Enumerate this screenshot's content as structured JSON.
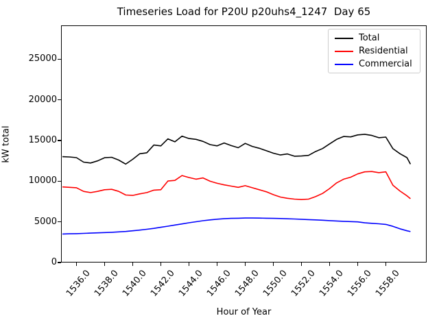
{
  "chart_data": {
    "type": "line",
    "title": "Timeseries Load for P20U p20uhs4_1247  Day 65",
    "xlabel": "Hour of Year",
    "ylabel": "kW total",
    "grid": false,
    "legend_position": "upper right",
    "xlim": [
      1534.9,
      1560.9
    ],
    "ylim": [
      0,
      29170
    ],
    "x_ticks": [
      {
        "value": 1536,
        "label": "1536.0"
      },
      {
        "value": 1538,
        "label": "1538.0"
      },
      {
        "value": 1540,
        "label": "1540.0"
      },
      {
        "value": 1542,
        "label": "1542.0"
      },
      {
        "value": 1544,
        "label": "1544.0"
      },
      {
        "value": 1546,
        "label": "1546.0"
      },
      {
        "value": 1548,
        "label": "1548.0"
      },
      {
        "value": 1550,
        "label": "1550.0"
      },
      {
        "value": 1552,
        "label": "1552.0"
      },
      {
        "value": 1554,
        "label": "1554.0"
      },
      {
        "value": 1556,
        "label": "1556.0"
      },
      {
        "value": 1558,
        "label": "1558.0"
      }
    ],
    "y_ticks": [
      {
        "value": 0,
        "label": "0"
      },
      {
        "value": 5000,
        "label": "5000"
      },
      {
        "value": 10000,
        "label": "10000"
      },
      {
        "value": 15000,
        "label": "15000"
      },
      {
        "value": 20000,
        "label": "20000"
      },
      {
        "value": 25000,
        "label": "25000"
      }
    ],
    "x": [
      1535.0,
      1535.5,
      1536.0,
      1536.5,
      1537.0,
      1537.5,
      1538.0,
      1538.5,
      1539.0,
      1539.5,
      1540.0,
      1540.5,
      1541.0,
      1541.5,
      1542.0,
      1542.5,
      1543.0,
      1543.5,
      1544.0,
      1544.5,
      1545.0,
      1545.5,
      1546.0,
      1546.5,
      1547.0,
      1547.5,
      1548.0,
      1548.5,
      1549.0,
      1549.5,
      1550.0,
      1550.5,
      1551.0,
      1551.5,
      1552.0,
      1552.5,
      1553.0,
      1553.5,
      1554.0,
      1554.5,
      1555.0,
      1555.5,
      1556.0,
      1556.5,
      1557.0,
      1557.5,
      1558.0,
      1558.5,
      1559.0,
      1559.5,
      1559.75
    ],
    "series": [
      {
        "name": "Total",
        "color": "#000000",
        "values": [
          13020,
          12980,
          12900,
          12350,
          12240,
          12500,
          12890,
          12940,
          12600,
          12110,
          12700,
          13380,
          13500,
          14450,
          14350,
          15210,
          14850,
          15550,
          15250,
          15150,
          14900,
          14500,
          14350,
          14700,
          14380,
          14120,
          14650,
          14280,
          14050,
          13750,
          13450,
          13230,
          13350,
          13080,
          13100,
          13180,
          13650,
          14020,
          14590,
          15150,
          15500,
          15450,
          15700,
          15770,
          15630,
          15350,
          15430,
          14000,
          13390,
          12900,
          12100
        ]
      },
      {
        "name": "Residential",
        "color": "#ff0000",
        "values": [
          9300,
          9250,
          9200,
          8750,
          8600,
          8750,
          8950,
          9000,
          8750,
          8300,
          8250,
          8450,
          8600,
          8900,
          8950,
          10020,
          10100,
          10700,
          10450,
          10250,
          10400,
          10000,
          9750,
          9550,
          9400,
          9250,
          9450,
          9200,
          8950,
          8700,
          8350,
          8050,
          7900,
          7800,
          7750,
          7800,
          8100,
          8500,
          9100,
          9800,
          10250,
          10500,
          10900,
          11150,
          11200,
          11050,
          11150,
          9500,
          8800,
          8200,
          7850
        ]
      },
      {
        "name": "Commercial",
        "color": "#0000ff",
        "values": [
          3510,
          3530,
          3550,
          3580,
          3620,
          3650,
          3680,
          3720,
          3770,
          3820,
          3900,
          3990,
          4090,
          4200,
          4330,
          4470,
          4610,
          4750,
          4890,
          5020,
          5140,
          5240,
          5330,
          5390,
          5430,
          5450,
          5470,
          5470,
          5460,
          5450,
          5430,
          5410,
          5380,
          5350,
          5320,
          5280,
          5240,
          5200,
          5150,
          5110,
          5070,
          5030,
          5000,
          4880,
          4820,
          4760,
          4690,
          4450,
          4150,
          3900,
          3800
        ]
      }
    ]
  }
}
